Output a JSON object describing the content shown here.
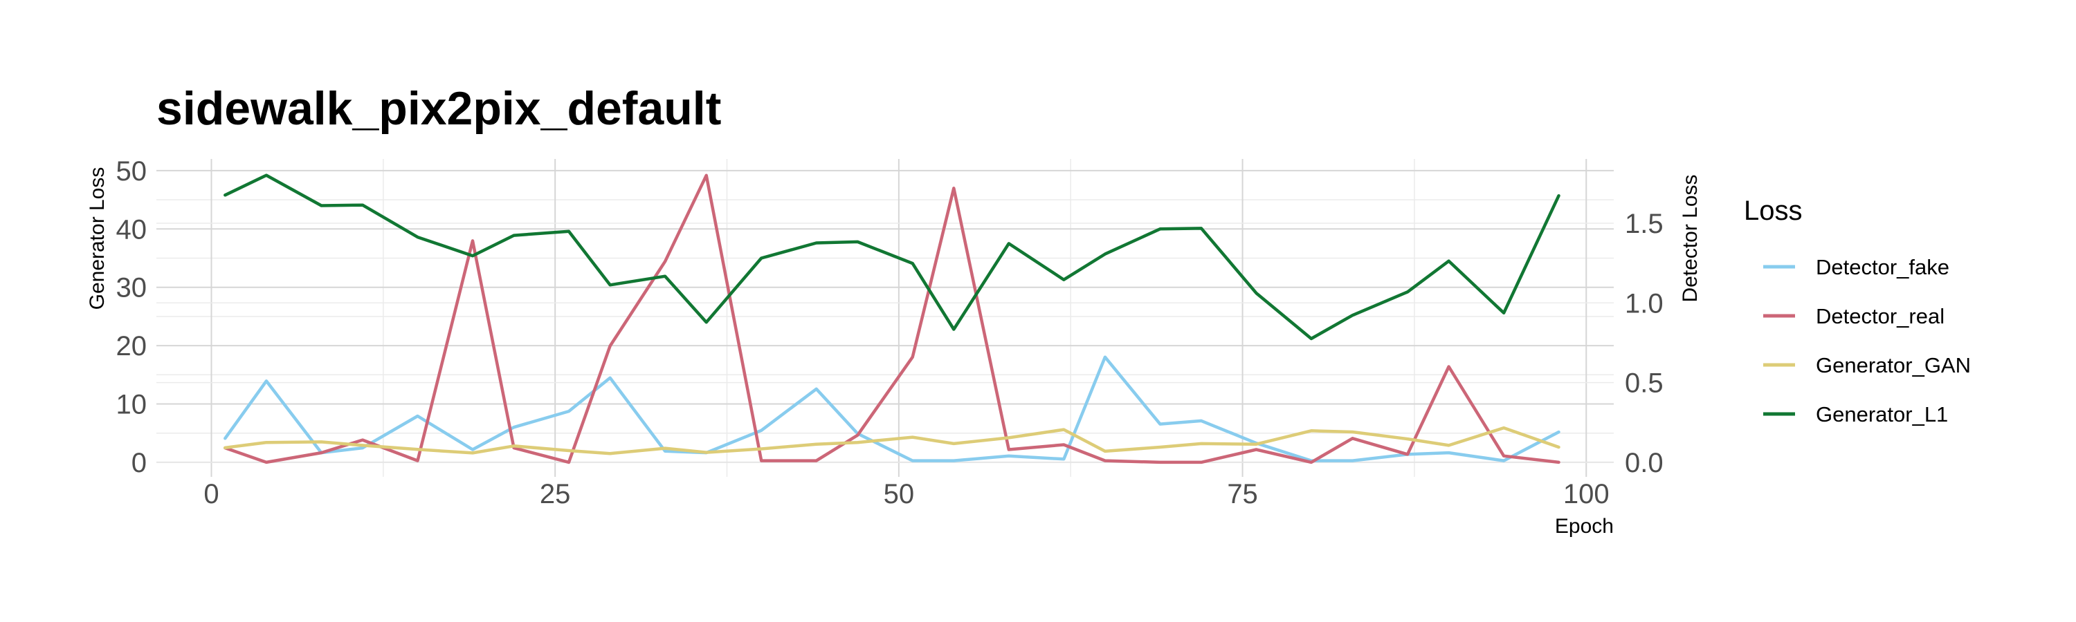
{
  "chart_data": {
    "type": "line",
    "title": "sidewalk_pix2pix_default",
    "xlabel": "Epoch",
    "ylabel": "Generator Loss",
    "y2label": "Detector Loss",
    "xlim": [
      -4,
      102
    ],
    "ylim": [
      -2.5,
      52
    ],
    "y2lim": [
      -0.0915,
      1.9033
    ],
    "xticks": [
      0,
      25,
      50,
      75,
      100
    ],
    "yticks": [
      0,
      10,
      20,
      30,
      40,
      50
    ],
    "y2ticks": [
      "0.0",
      "0.5",
      "1.0",
      "1.5"
    ],
    "y2tick_values": [
      0.0,
      0.5,
      1.0,
      1.5
    ],
    "grid": true,
    "legend_title": "Loss",
    "legend_position": "right",
    "series": [
      {
        "name": "Detector_fake",
        "axis": "right",
        "color": "#88CCEE",
        "x": [
          1,
          4,
          8,
          11,
          15,
          19,
          22,
          26,
          29,
          33,
          36,
          40,
          44,
          47,
          51,
          54,
          58,
          62,
          65,
          69,
          72,
          76,
          80,
          83,
          87,
          90,
          94,
          98
        ],
        "y": [
          0.15,
          0.51,
          0.06,
          0.09,
          0.29,
          0.08,
          0.22,
          0.32,
          0.53,
          0.07,
          0.06,
          0.2,
          0.46,
          0.18,
          0.01,
          0.01,
          0.04,
          0.02,
          0.66,
          0.24,
          0.26,
          0.12,
          0.01,
          0.01,
          0.05,
          0.06,
          0.01,
          0.19
        ]
      },
      {
        "name": "Detector_real",
        "axis": "right",
        "color": "#CC6677",
        "x": [
          1,
          4,
          8,
          11,
          15,
          19,
          22,
          26,
          29,
          33,
          36,
          40,
          44,
          47,
          51,
          54,
          58,
          62,
          65,
          69,
          72,
          76,
          80,
          83,
          87,
          90,
          94,
          98
        ],
        "y": [
          0.09,
          0.0,
          0.06,
          0.14,
          0.01,
          1.39,
          0.09,
          0.0,
          0.73,
          1.26,
          1.8,
          0.01,
          0.01,
          0.17,
          0.66,
          1.72,
          0.08,
          0.11,
          0.01,
          0.0,
          0.0,
          0.08,
          0.0,
          0.15,
          0.05,
          0.6,
          0.04,
          0.0
        ]
      },
      {
        "name": "Generator_GAN",
        "axis": "left",
        "color": "#DDCC77",
        "x": [
          1,
          4,
          8,
          11,
          15,
          19,
          22,
          26,
          29,
          33,
          36,
          40,
          44,
          47,
          51,
          54,
          58,
          62,
          65,
          69,
          72,
          76,
          80,
          83,
          87,
          90,
          94,
          98
        ],
        "y": [
          2.5,
          3.4,
          3.5,
          2.9,
          2.2,
          1.6,
          2.8,
          2.0,
          1.5,
          2.4,
          1.7,
          2.3,
          3.1,
          3.4,
          4.3,
          3.2,
          4.2,
          5.6,
          1.9,
          2.6,
          3.2,
          3.1,
          5.4,
          5.2,
          4.0,
          2.9,
          5.9,
          2.6
        ]
      },
      {
        "name": "Generator_L1",
        "axis": "left",
        "color": "#117733",
        "x": [
          1,
          4,
          8,
          11,
          15,
          19,
          22,
          26,
          29,
          33,
          36,
          40,
          44,
          47,
          51,
          54,
          58,
          62,
          65,
          69,
          72,
          76,
          80,
          83,
          87,
          90,
          94,
          98
        ],
        "y": [
          45.8,
          49.2,
          44.0,
          44.1,
          38.6,
          35.4,
          38.9,
          39.6,
          30.4,
          31.9,
          24.0,
          35.0,
          37.6,
          37.8,
          34.1,
          22.8,
          37.5,
          31.3,
          35.7,
          40.0,
          40.1,
          29.0,
          21.2,
          25.2,
          29.2,
          34.5,
          25.6,
          45.7
        ]
      }
    ]
  }
}
